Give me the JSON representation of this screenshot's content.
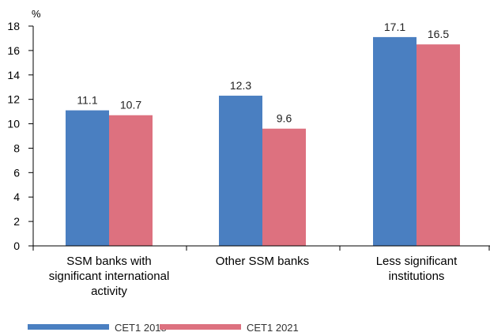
{
  "chart_data": {
    "type": "bar",
    "unit_label": "%",
    "categories": [
      [
        "SSM banks with",
        "significant international",
        "activity"
      ],
      [
        "Other SSM banks"
      ],
      [
        "Less significant",
        "institutions"
      ]
    ],
    "series": [
      {
        "name": "CET1 2018",
        "values": [
          11.1,
          12.3,
          17.1
        ],
        "color": "#4a7fc1"
      },
      {
        "name": "CET1 2021",
        "values": [
          10.7,
          9.6,
          16.5
        ],
        "color": "#dd717f"
      }
    ],
    "value_labels": [
      [
        "11.1",
        "12.3",
        "17.1"
      ],
      [
        "10.7",
        "9.6",
        "16.5"
      ]
    ],
    "ylim": [
      0,
      18
    ],
    "yticks": [
      0,
      2,
      4,
      6,
      8,
      10,
      12,
      14,
      16,
      18
    ],
    "grid": false,
    "legend": "bottom-left"
  }
}
